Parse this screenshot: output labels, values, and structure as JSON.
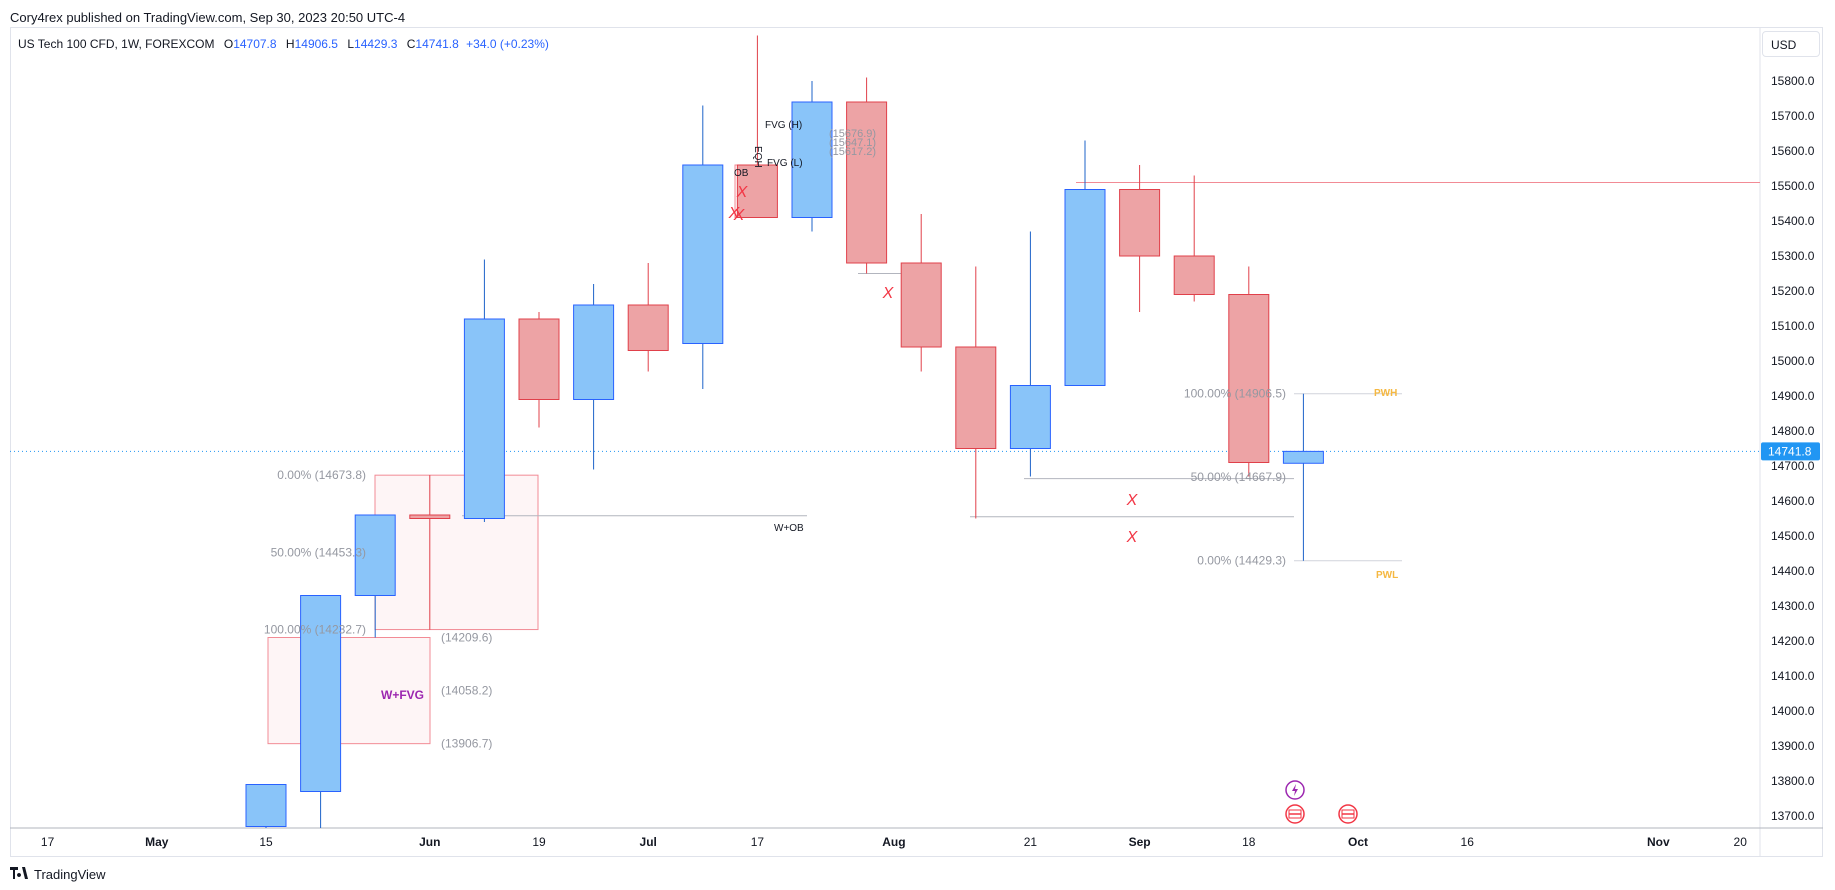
{
  "publish_line": "Cory4rex published on TradingView.com, Sep 30, 2023 20:50 UTC-4",
  "symbol": {
    "name": "US Tech 100 CFD, 1W, FOREXCOM",
    "open_label": "O",
    "open": "14707.8",
    "high_label": "H",
    "high": "14906.5",
    "low_label": "L",
    "low": "14429.3",
    "close_label": "C",
    "close": "14741.8",
    "change": "+34.0 (+0.23%)"
  },
  "currency_button": "USD",
  "footer_logo": "TradingView",
  "colors": {
    "up_fill": "#89c4f9",
    "up_border": "#2962ff",
    "up_wick": "#1e63c9",
    "down_fill": "#eda3a5",
    "down_border": "#e0404a",
    "down_wick": "#e0404a",
    "accent": "#2196f3",
    "fib_gray": "#9598a1",
    "pwh": "#f5b841",
    "purple": "#9c27b0",
    "cross": "#f23645"
  },
  "chart_data": {
    "type": "candlestick",
    "title": "US Tech 100 CFD, 1W, FOREXCOM",
    "xlabel": "",
    "ylabel": "USD",
    "ylim": [
      13650,
      15900
    ],
    "y_ticks": [
      13700,
      13800,
      13900,
      14000,
      14100,
      14200,
      14300,
      14400,
      14500,
      14600,
      14700,
      14800,
      14900,
      15000,
      15100,
      15200,
      15300,
      15400,
      15500,
      15600,
      15700,
      15800
    ],
    "y_tick_labels": [
      "13700.0",
      "13800.0",
      "13900.0",
      "14000.0",
      "14100.0",
      "14200.0",
      "14300.0",
      "14400.0",
      "14500.0",
      "14600.0",
      "14700.0",
      "14800.0",
      "14900.0",
      "15000.0",
      "15100.0",
      "15200.0",
      "15300.0",
      "15400.0",
      "15500.0",
      "15600.0",
      "15700.0",
      "15800.0"
    ],
    "x_labels": [
      {
        "text": "17",
        "week": -4
      },
      {
        "text": "May",
        "week": -2
      },
      {
        "text": "15",
        "week": 0
      },
      {
        "text": "Jun",
        "week": 3
      },
      {
        "text": "19",
        "week": 5
      },
      {
        "text": "Jul",
        "week": 7
      },
      {
        "text": "17",
        "week": 9
      },
      {
        "text": "Aug",
        "week": 11.5
      },
      {
        "text": "21",
        "week": 14
      },
      {
        "text": "Sep",
        "week": 16
      },
      {
        "text": "18",
        "week": 18
      },
      {
        "text": "Oct",
        "week": 20
      },
      {
        "text": "16",
        "week": 22
      },
      {
        "text": "Nov",
        "week": 25.5
      },
      {
        "text": "20",
        "week": 27
      }
    ],
    "candles": [
      {
        "date": "May 15",
        "o": 13670,
        "h": 13790,
        "l": 13650,
        "c": 13790
      },
      {
        "date": "May 22",
        "o": 13770,
        "h": 14330,
        "l": 13650,
        "c": 14330
      },
      {
        "date": "May 29",
        "o": 14330,
        "h": 14560,
        "l": 14210,
        "c": 14560
      },
      {
        "date": "Jun 05",
        "o": 14560,
        "h": 14674,
        "l": 14232,
        "c": 14550
      },
      {
        "date": "Jun 12",
        "o": 14550,
        "h": 15290,
        "l": 14540,
        "c": 15120
      },
      {
        "date": "Jun 19",
        "o": 15120,
        "h": 15140,
        "l": 14810,
        "c": 14890
      },
      {
        "date": "Jun 26",
        "o": 14890,
        "h": 15220,
        "l": 14690,
        "c": 15160
      },
      {
        "date": "Jul 03",
        "o": 15160,
        "h": 15280,
        "l": 14970,
        "c": 15030
      },
      {
        "date": "Jul 10",
        "o": 15050,
        "h": 15730,
        "l": 14920,
        "c": 15560
      },
      {
        "date": "Jul 17",
        "o": 15560,
        "h": 15930,
        "l": 15410,
        "c": 15410
      },
      {
        "date": "Jul 24",
        "o": 15410,
        "h": 15800,
        "l": 15370,
        "c": 15740
      },
      {
        "date": "Jul 31",
        "o": 15740,
        "h": 15810,
        "l": 15250,
        "c": 15280
      },
      {
        "date": "Aug 07",
        "o": 15280,
        "h": 15420,
        "l": 14970,
        "c": 15040
      },
      {
        "date": "Aug 14",
        "o": 15040,
        "h": 15270,
        "l": 14550,
        "c": 14750
      },
      {
        "date": "Aug 21",
        "o": 14750,
        "h": 15370,
        "l": 14670,
        "c": 14930
      },
      {
        "date": "Aug 28",
        "o": 14930,
        "h": 15630,
        "l": 14930,
        "c": 15490
      },
      {
        "date": "Sep 04",
        "o": 15490,
        "h": 15560,
        "l": 15140,
        "c": 15300
      },
      {
        "date": "Sep 11",
        "o": 15300,
        "h": 15530,
        "l": 15170,
        "c": 15190
      },
      {
        "date": "Sep 18",
        "o": 15190,
        "h": 15270,
        "l": 14670,
        "c": 14710
      },
      {
        "date": "Sep 25",
        "o": 14707.8,
        "h": 14906.5,
        "l": 14429.3,
        "c": 14741.8
      }
    ],
    "last_price": 14741.8,
    "last_price_label": "14741.8",
    "annotations": {
      "fib_left": [
        {
          "label": "0.00% (14673.8)",
          "price": 14673.8
        },
        {
          "label": "50.00% (14453.3)",
          "price": 14453.3
        },
        {
          "label": "100.00% (14232.7)",
          "price": 14232.7
        }
      ],
      "fib_right": [
        {
          "label": "100.00% (14906.5)",
          "price": 14906.5
        },
        {
          "label": "50.00% (14667.9)",
          "price": 14667.9
        },
        {
          "label": "0.00% (14429.3)",
          "price": 14429.3
        }
      ],
      "fvg_levels": [
        {
          "label": "(14209.6)",
          "price": 14209.6
        },
        {
          "label": "(14058.2)",
          "price": 14058.2
        },
        {
          "label": "(13906.7)",
          "price": 13906.7
        }
      ],
      "top_levels": [
        "(15676.9)",
        "(15647.1)",
        "(15617.2)"
      ],
      "fvg_high": "FVG (H)",
      "fvg_low": "FVG (L)",
      "wfvg": "W+FVG",
      "wob": "W+OB",
      "ob": "OB",
      "eqh": "EQH",
      "pwh": "PWH",
      "pwl": "PWL",
      "cross": "X",
      "resistance_price": 15510,
      "w_ob_line_price": 14558,
      "aug_low_line_price": 14555,
      "aug21_low_line_price": 14664,
      "fvg_box": {
        "top": 14210,
        "bottom": 13906.7
      },
      "ob_box": {
        "top": 14673.8,
        "bottom": 14232.7
      }
    }
  }
}
